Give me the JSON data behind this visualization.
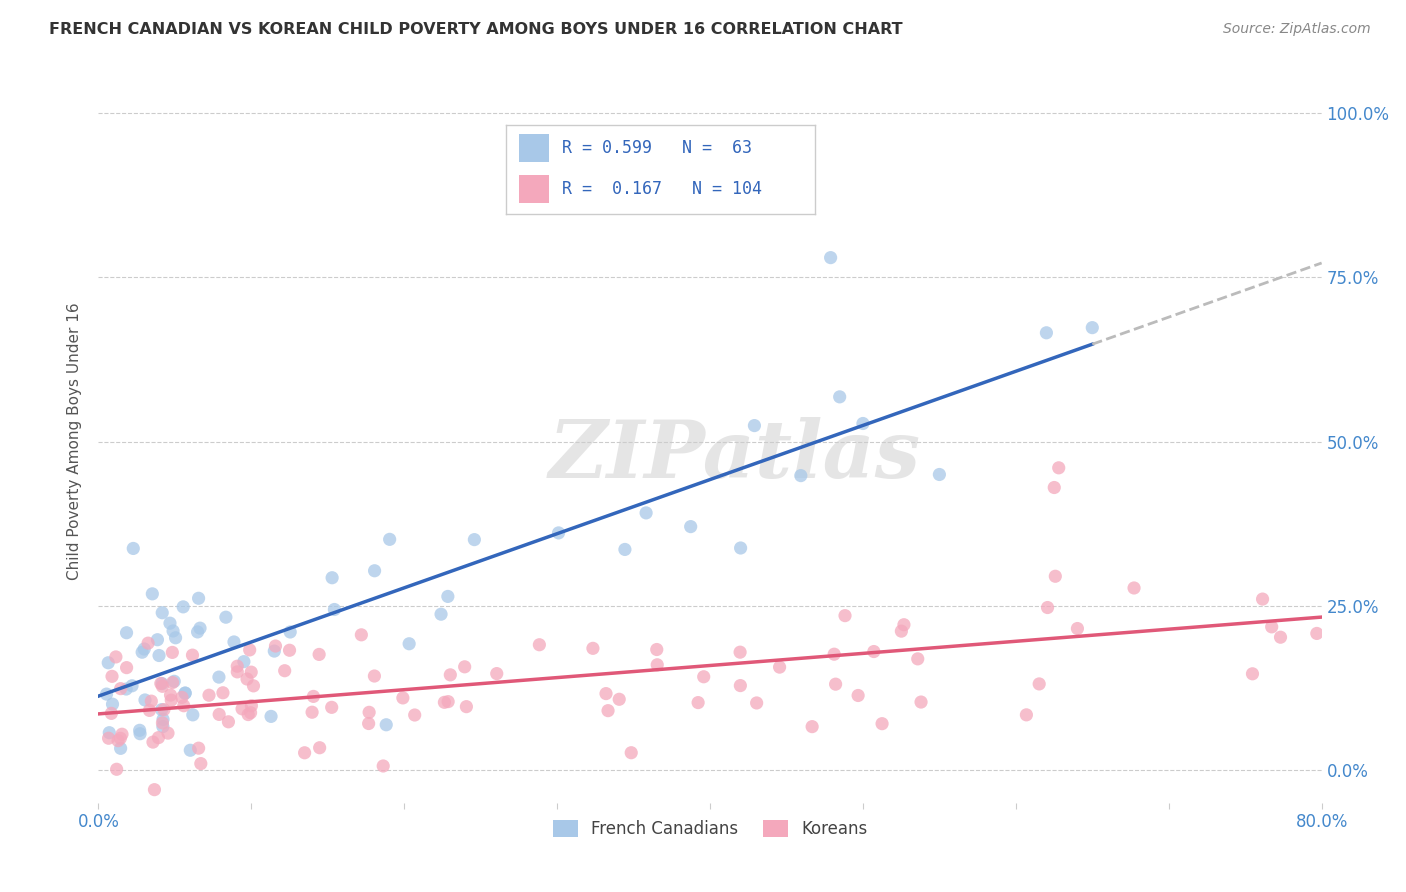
{
  "title": "FRENCH CANADIAN VS KOREAN CHILD POVERTY AMONG BOYS UNDER 16 CORRELATION CHART",
  "source": "Source: ZipAtlas.com",
  "ylabel": "Child Poverty Among Boys Under 16",
  "xlim": [
    0.0,
    0.8
  ],
  "ylim": [
    -0.05,
    1.05
  ],
  "ytick_positions": [
    0.0,
    0.25,
    0.5,
    0.75,
    1.0
  ],
  "yticklabels_right": [
    "0.0%",
    "25.0%",
    "50.0%",
    "75.0%",
    "100.0%"
  ],
  "french_R": 0.599,
  "french_N": 63,
  "korean_R": 0.167,
  "korean_N": 104,
  "french_color": "#a8c8e8",
  "korean_color": "#f4a8bc",
  "french_line_color": "#3366bb",
  "korean_line_color": "#e05878",
  "dashed_line_color": "#bbbbbb",
  "watermark": "ZIPatlas",
  "background_color": "#ffffff",
  "grid_color": "#cccccc",
  "title_color": "#333333",
  "source_color": "#888888",
  "ytick_color": "#4488cc",
  "xtick_color": "#4488cc",
  "ylabel_color": "#555555"
}
